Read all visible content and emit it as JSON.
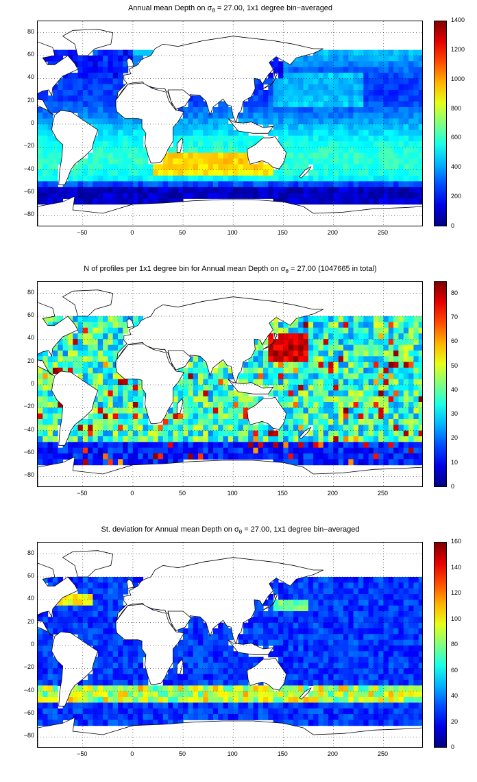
{
  "panels": [
    {
      "title_pre": "Annual mean Depth on ",
      "title_sigma": "σ",
      "title_sub": "θ",
      "title_post": " = 27.00, 1x1 degree bin−averaged",
      "colorbar_ticks": [
        "1400",
        "1200",
        "1000",
        "800",
        "600",
        "400",
        "200",
        "0"
      ],
      "field": "depth"
    },
    {
      "title_pre": "N of profiles per 1x1 degree bin for Annual mean Depth on ",
      "title_sigma": "σ",
      "title_sub": "θ",
      "title_post": " = 27.00 (1047665 in total)",
      "colorbar_ticks": [
        "80",
        "70",
        "60",
        "50",
        "40",
        "30",
        "20",
        "10",
        "0"
      ],
      "field": "count"
    },
    {
      "title_pre": "St. deviation for Annual mean Depth on ",
      "title_sigma": "σ",
      "title_sub": "θ",
      "title_post": " = 27.00, 1x1 degree bin−averaged",
      "colorbar_ticks": [
        "160",
        "140",
        "120",
        "100",
        "80",
        "60",
        "40",
        "20",
        "0"
      ],
      "field": "std"
    }
  ],
  "y_ticks": [
    "80",
    "60",
    "40",
    "20",
    "0",
    "−20",
    "−40",
    "−60",
    "−80"
  ],
  "x_ticks": [
    "−50",
    "0",
    "50",
    "100",
    "150",
    "200",
    "250"
  ],
  "colormap": "jet",
  "grid": "dotted"
}
